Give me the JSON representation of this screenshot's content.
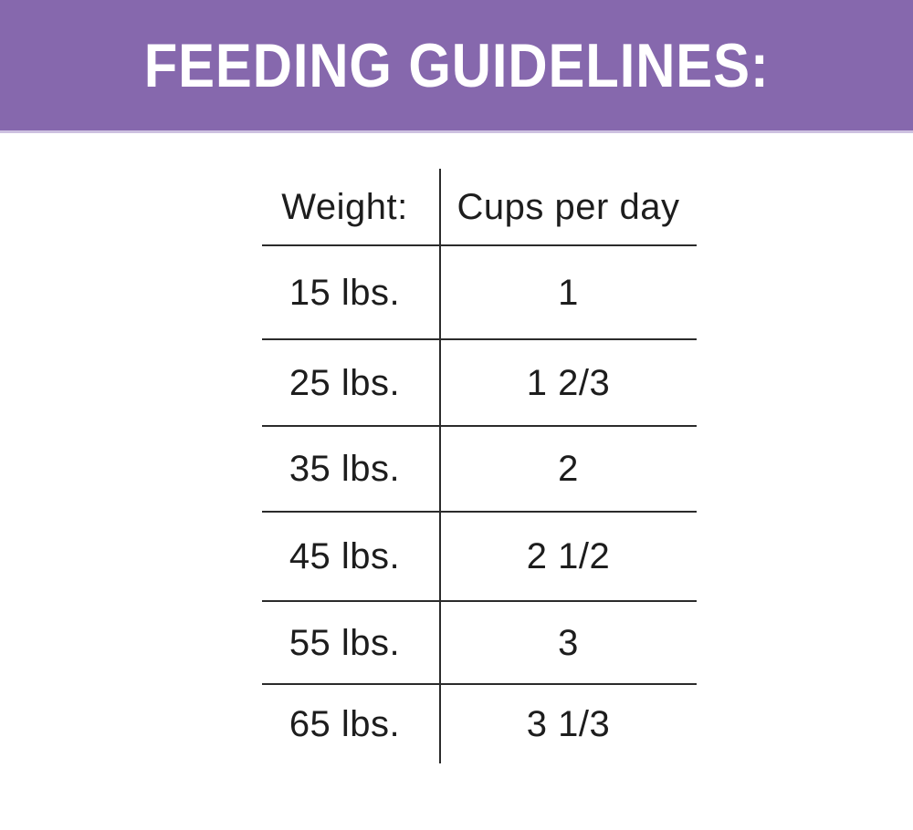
{
  "banner": {
    "title": "FEEDING GUIDELINES:"
  },
  "table": {
    "headers": [
      "Weight:",
      "Cups per day"
    ],
    "rows": [
      [
        "15 lbs.",
        "1"
      ],
      [
        "25 lbs.",
        "1 2/3"
      ],
      [
        "35 lbs.",
        "2"
      ],
      [
        "45 lbs.",
        "2 1/2"
      ],
      [
        "55 lbs.",
        "3"
      ],
      [
        "65 lbs.",
        "3 1/3"
      ]
    ]
  },
  "colors": {
    "banner_bg": "#8668ad",
    "banner_bottom_edge": "#cdc1e0",
    "banner_text": "#ffffff",
    "table_line": "#2b2b2b",
    "table_text": "#1d1d1d",
    "page_bg": "#ffffff"
  },
  "chart_data": {
    "type": "table",
    "title": "FEEDING GUIDELINES:",
    "columns": [
      "Weight:",
      "Cups per day"
    ],
    "rows": [
      [
        "15 lbs.",
        "1"
      ],
      [
        "25 lbs.",
        "1 2/3"
      ],
      [
        "35 lbs.",
        "2"
      ],
      [
        "45 lbs.",
        "2 1/2"
      ],
      [
        "55 lbs.",
        "3"
      ],
      [
        "65 lbs.",
        "3 1/3"
      ]
    ],
    "weights_lbs": [
      15,
      25,
      35,
      45,
      55,
      65
    ],
    "cups_per_day": [
      1,
      1.667,
      2,
      2.5,
      3,
      3.333
    ]
  }
}
